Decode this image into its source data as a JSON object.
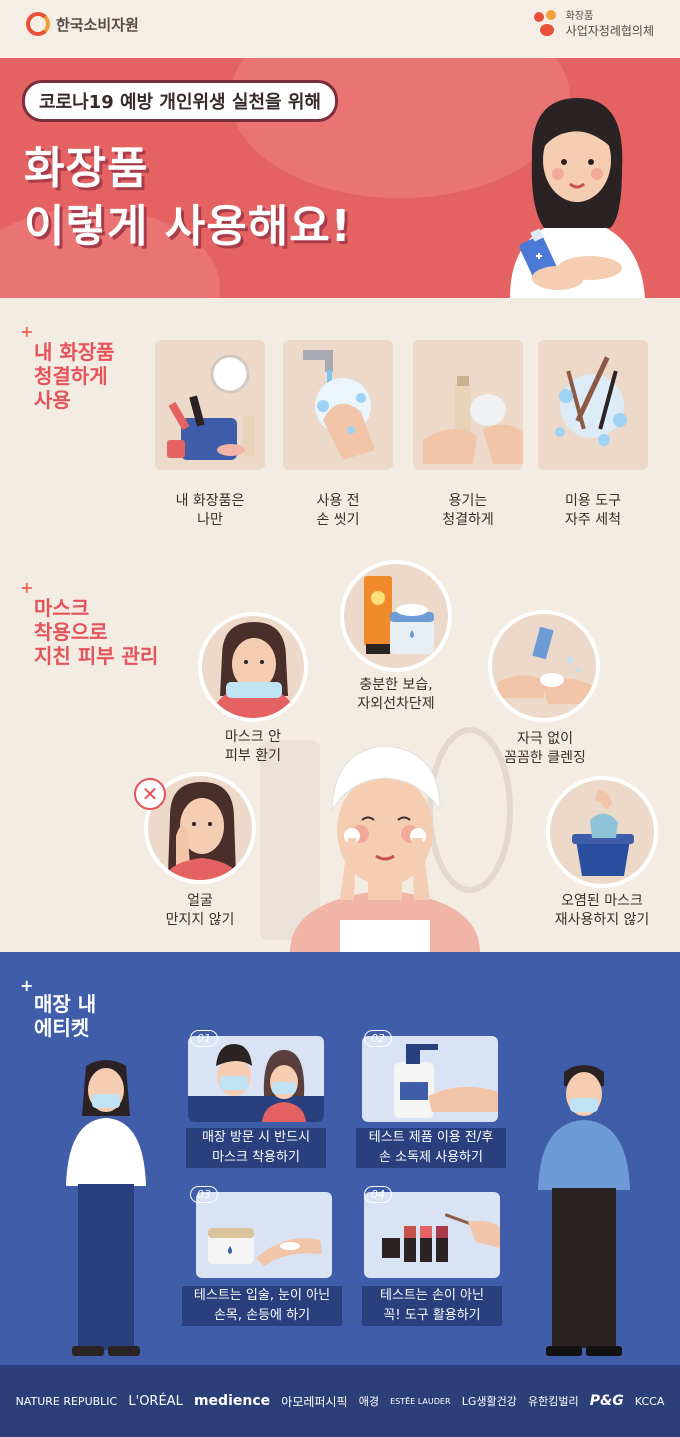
{
  "header": {
    "left_logo": "한국소비자원",
    "right_logo_small": "화장품",
    "right_logo": "사업자정례협의체"
  },
  "hero": {
    "tag": "코로나19 예방 개인위생 실천을 위해",
    "title_line1": "화장품",
    "title_line2": "이렇게 사용해요!"
  },
  "section1": {
    "title": [
      "내 화장품",
      "청결하게",
      "사용"
    ],
    "items": [
      {
        "caption": [
          "내 화장품은",
          "나만"
        ]
      },
      {
        "caption": [
          "사용 전",
          "손 씻기"
        ]
      },
      {
        "caption": [
          "용기는",
          "청결하게"
        ]
      },
      {
        "caption": [
          "미용 도구",
          "자주 세척"
        ]
      }
    ]
  },
  "section2": {
    "title": [
      "마스크",
      "착용으로",
      "지친 피부 관리"
    ],
    "items": [
      {
        "caption": [
          "마스크 안",
          "피부 환기"
        ]
      },
      {
        "caption": [
          "충분한 보습,",
          "자외선차단제"
        ]
      },
      {
        "caption": [
          "자극 없이",
          "꼼꼼한 클렌징"
        ]
      },
      {
        "caption": [
          "얼굴",
          "만지지 않기"
        ]
      },
      {
        "caption": [
          "오염된 마스크",
          "재사용하지 않기"
        ]
      }
    ]
  },
  "section3": {
    "title": [
      "매장 내",
      "에티켓"
    ],
    "items": [
      {
        "num": "01",
        "caption": [
          "매장 방문 시 반드시",
          "마스크 착용하기"
        ]
      },
      {
        "num": "02",
        "caption": [
          "테스트 제품 이용 전/후",
          "손 소독제 사용하기"
        ]
      },
      {
        "num": "03",
        "caption": [
          "테스트는 입술, 눈이 아닌",
          "손목, 손등에 하기"
        ]
      },
      {
        "num": "04",
        "caption": [
          "테스트는 손이 아닌",
          "꼭! 도구 활용하기"
        ]
      }
    ]
  },
  "footer_logos": [
    "NATURE REPUBLIC",
    "L'ORÉAL",
    "medience",
    "아모레퍼시픽",
    "애경",
    "ESTĒE LAUDER",
    "LG생활건강",
    "유한킴벌리",
    "P&G",
    "KCCA"
  ],
  "colors": {
    "hero": "#e56262",
    "blue": "#3f5da8",
    "cream": "#f3ece3",
    "accent": "#e96a5a"
  }
}
